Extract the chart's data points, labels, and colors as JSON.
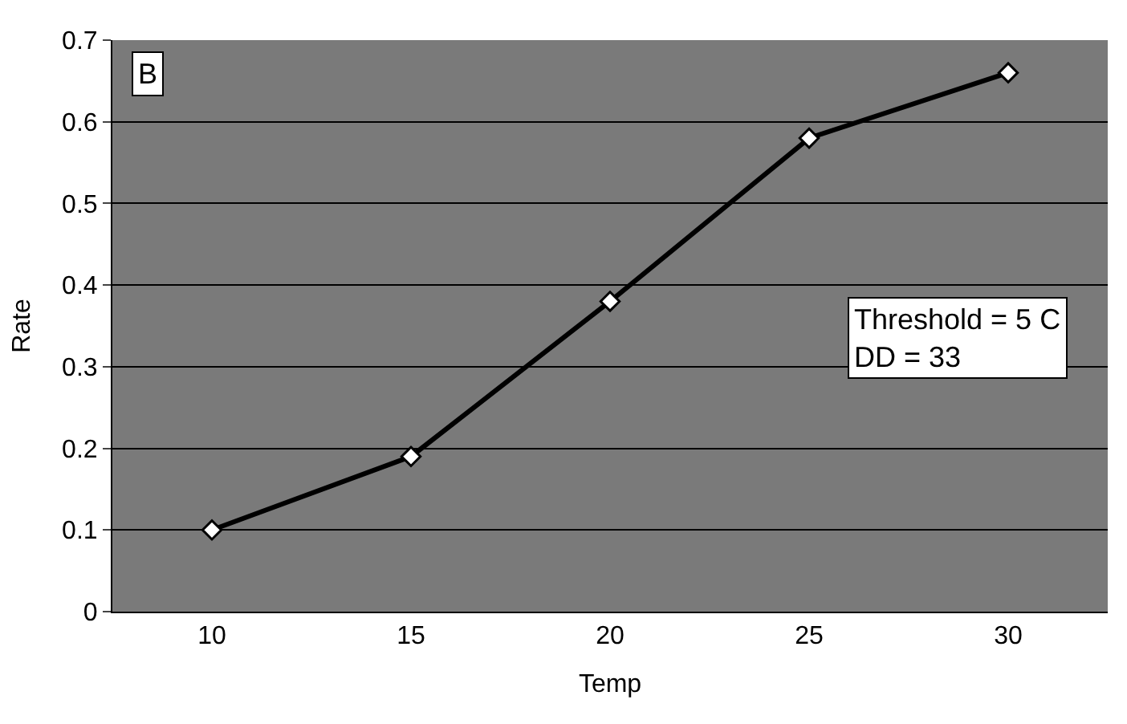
{
  "chart_data": {
    "type": "line",
    "xlabel": "Temp",
    "ylabel": "Rate",
    "categories": [
      "10",
      "15",
      "20",
      "25",
      "30"
    ],
    "series": [
      {
        "color": "#000000",
        "values": [
          0.1,
          0.19,
          0.38,
          0.58,
          0.66
        ]
      }
    ],
    "ylim": [
      0,
      0.7
    ],
    "yticks": [
      0,
      0.1,
      0.2,
      0.3,
      0.4,
      0.5,
      0.6,
      0.7
    ],
    "grid": "y",
    "marker": "diamond",
    "line_style": "solid",
    "annotations": [
      "B",
      "Threshold = 5 C\nDD = 33"
    ]
  }
}
